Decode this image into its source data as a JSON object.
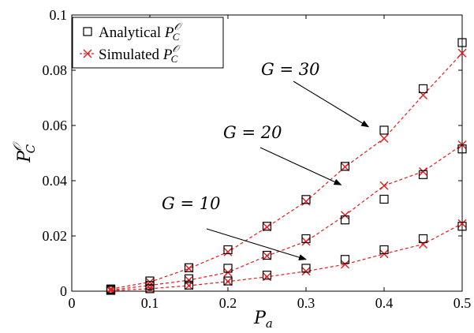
{
  "chart_data": {
    "type": "line",
    "xlabel": "P_a",
    "ylabel": "P_C^O",
    "xlim": [
      0,
      0.5
    ],
    "ylim": [
      0,
      0.1
    ],
    "x_ticks": [
      "0",
      "0.1",
      "0.2",
      "0.3",
      "0.4",
      "0.5"
    ],
    "y_ticks": [
      "0",
      "0.02",
      "0.04",
      "0.06",
      "0.08",
      "0.1"
    ],
    "x_tick_values": [
      0,
      0.1,
      0.2,
      0.3,
      0.4,
      0.5
    ],
    "y_tick_values": [
      0,
      0.02,
      0.04,
      0.06,
      0.08,
      0.1
    ],
    "grid": false,
    "legend_position": "top-left",
    "x": [
      0.05,
      0.1,
      0.15,
      0.2,
      0.25,
      0.3,
      0.35,
      0.4,
      0.45,
      0.5
    ],
    "series": [
      {
        "name": "Analytical P_C^O",
        "marker": "square",
        "line": false,
        "groups": [
          {
            "G": 10,
            "values": [
              0.0003,
              0.0009,
              0.0022,
              0.0037,
              0.0058,
              0.0083,
              0.0115,
              0.015,
              0.019,
              0.0235
            ]
          },
          {
            "G": 20,
            "values": [
              0.0005,
              0.0021,
              0.0045,
              0.0083,
              0.013,
              0.019,
              0.0258,
              0.0333,
              0.0422,
              0.0515
            ]
          },
          {
            "G": 30,
            "values": [
              0.0008,
              0.0037,
              0.0085,
              0.015,
              0.0235,
              0.0332,
              0.0452,
              0.0583,
              0.0733,
              0.09
            ]
          }
        ]
      },
      {
        "name": "Simulated P_C^O",
        "marker": "x",
        "line": "dashed",
        "groups": [
          {
            "G": 10,
            "values": [
              0.0002,
              0.0009,
              0.002,
              0.0035,
              0.0052,
              0.0072,
              0.0097,
              0.0135,
              0.017,
              0.0245
            ]
          },
          {
            "G": 20,
            "values": [
              0.0004,
              0.0021,
              0.004,
              0.0068,
              0.0128,
              0.018,
              0.0275,
              0.0382,
              0.0433,
              0.053
            ]
          },
          {
            "G": 30,
            "values": [
              0.0008,
              0.0033,
              0.0082,
              0.0142,
              0.0232,
              0.0325,
              0.045,
              0.0553,
              0.071,
              0.0862
            ]
          }
        ]
      }
    ],
    "annotations": [
      {
        "text": "G = 10",
        "arrow_to": [
          0.3,
          0.0115
        ]
      },
      {
        "text": "G = 20",
        "arrow_to": [
          0.345,
          0.0385
        ]
      },
      {
        "text": "G = 30",
        "arrow_to": [
          0.38,
          0.0595
        ]
      }
    ]
  },
  "colors": {
    "simulated": "#e8181c",
    "analytical": "#000000",
    "axis": "#000000"
  }
}
